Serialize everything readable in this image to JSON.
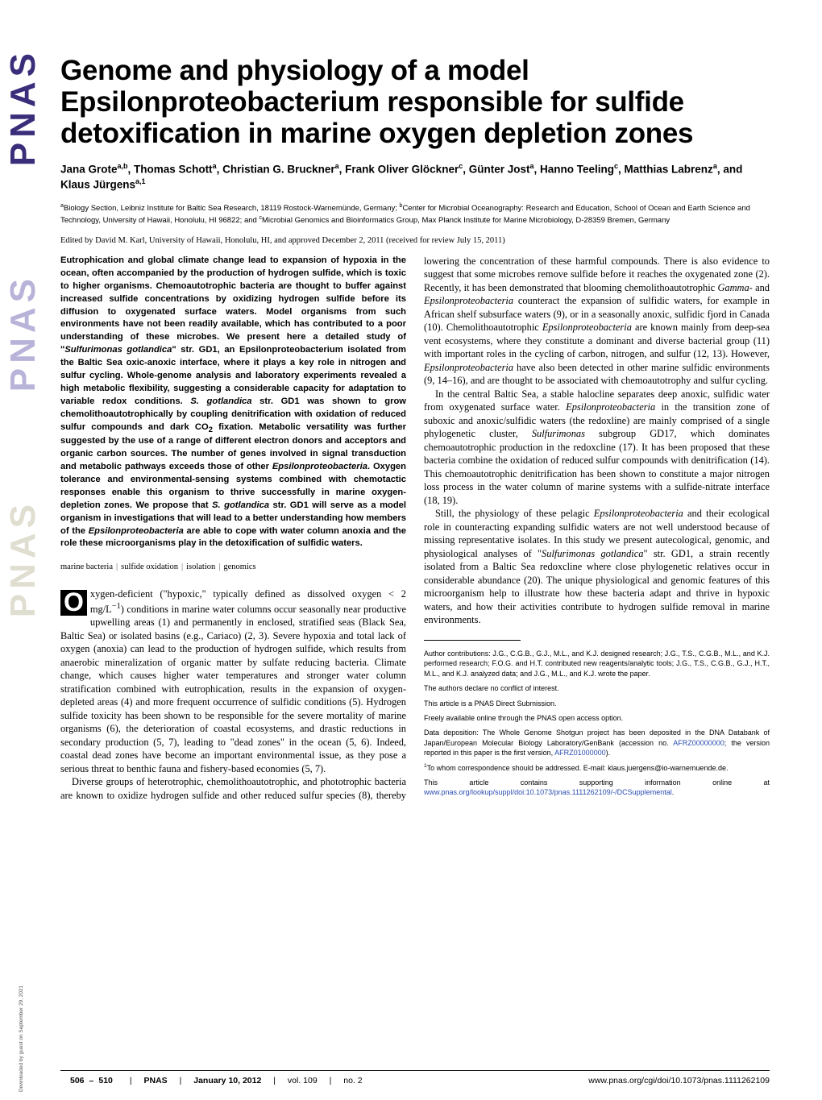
{
  "banner": {
    "text1": "PNAS",
    "text2": "PNAS",
    "text3": "PNAS",
    "download": "Downloaded by guest on September 29, 2021"
  },
  "title": "Genome and physiology of a model Epsilonproteobacterium responsible for sulfide detoxification in marine oxygen depletion zones",
  "authors_html": "Jana Grote<sup>a,b</sup>, Thomas Schott<sup>a</sup>, Christian G. Bruckner<sup>a</sup>, Frank Oliver Glöckner<sup>c</sup>, Günter Jost<sup>a</sup>, Hanno Teeling<sup>c</sup>, Matthias Labrenz<sup>a</sup>, and Klaus Jürgens<sup>a,1</sup>",
  "affiliations_html": "<sup>a</sup>Biology Section, Leibniz Institute for Baltic Sea Research, 18119 Rostock-Warnemünde, Germany; <sup>b</sup>Center for Microbial Oceanography: Research and Education, School of Ocean and Earth Science and Technology, University of Hawaii, Honolulu, HI 96822; and <sup>c</sup>Microbial Genomics and Bioinformatics Group, Max Planck Institute for Marine Microbiology, D-28359 Bremen, Germany",
  "edited": "Edited by David M. Karl, University of Hawaii, Honolulu, HI, and approved December 2, 2011 (received for review July 15, 2011)",
  "abstract_html": "Eutrophication and global climate change lead to expansion of hypoxia in the ocean, often accompanied by the production of hydrogen sulfide, which is toxic to higher organisms. Chemoautotrophic bacteria are thought to buffer against increased sulfide concentrations by oxidizing hydrogen sulfide before its diffusion to oxygenated surface waters. Model organisms from such environments have not been readily available, which has contributed to a poor understanding of these microbes. We present here a detailed study of \"<span class='ital'>Sulfurimonas gotlandica</span>\" str. GD1, an Epsilonproteobacterium isolated from the Baltic Sea oxic-anoxic interface, where it plays a key role in nitrogen and sulfur cycling. Whole-genome analysis and laboratory experiments revealed a high metabolic flexibility, suggesting a considerable capacity for adaptation to variable redox conditions. <span class='ital'>S. gotlandica</span> str. GD1 was shown to grow chemolithoautotrophically by coupling denitrification with oxidation of reduced sulfur compounds and dark CO<sub>2</sub> fixation. Metabolic versatility was further suggested by the use of a range of different electron donors and acceptors and organic carbon sources. The number of genes involved in signal transduction and metabolic pathways exceeds those of other <span class='ital'>Epsilonproteobacteria</span>. Oxygen tolerance and environmental-sensing systems combined with chemotactic responses enable this organism to thrive successfully in marine oxygen-depletion zones. We propose that <span class='ital'>S. gotlandica</span> str. GD1 will serve as a model organism in investigations that will lead to a better understanding how members of the <span class='ital'>Epsilonproteobacteria</span> are able to cope with water column anoxia and the role these microorganisms play in the detoxification of sulfidic waters.",
  "keywords": [
    "marine bacteria",
    "sulfide oxidation",
    "isolation",
    "genomics"
  ],
  "body": {
    "p1_html": "xygen-deficient (\"hypoxic,\" typically defined as dissolved oxygen &lt; 2 mg/L<sup>−1</sup>) conditions in marine water columns occur seasonally near productive upwelling areas (1) and permanently in enclosed, stratified seas (Black Sea, Baltic Sea) or isolated basins (e.g., Cariaco) (2, 3). Severe hypoxia and total lack of oxygen (anoxia) can lead to the production of hydrogen sulfide, which results from anaerobic mineralization of organic matter by sulfate reducing bacteria. Climate change, which causes higher water temperatures and stronger water column stratification combined with eutrophication, results in the expansion of oxygen-depleted areas (4) and more frequent occurrence of sulfidic conditions (5). Hydrogen sulfide toxicity has been shown to be responsible for the severe mortality of marine organisms (6), the deterioration of coastal ecosystems, and drastic reductions in secondary production (5, 7), leading to \"dead zones\" in the ocean (5, 6). Indeed, coastal dead zones have become an important environmental issue, as they pose a serious threat to benthic fauna and fishery-based economies (5, 7).",
    "p2_html": "Diverse groups of heterotrophic, chemolithoautotrophic, and phototrophic bacteria are known to oxidize hydrogen sulfide and other reduced sulfur species (8), thereby lowering the concentration of these harmful compounds. There is also evidence to suggest that some microbes remove sulfide before it reaches the oxygenated zone (2). Recently, it has been demonstrated that blooming chemolithoautotrophic <span class='ital'>Gamma-</span> and <span class='ital'>Epsilonproteobacteria</span> counteract the expansion of sulfidic waters, for example in African shelf subsurface waters (9), or in a seasonally anoxic, sulfidic fjord in Canada (10). Chemolithoautotrophic <span class='ital'>Epsilonproteobacteria</span> are known mainly from deep-sea vent ecosystems, where they constitute a dominant and diverse bacterial group (11) with important roles in the cycling of carbon, nitrogen, and sulfur (12, 13). However, <span class='ital'>Epsilonproteobacteria</span> have also been detected in other marine sulfidic environments (9, 14–16), and are thought to be associated with chemoautotrophy and sulfur cycling.",
    "p3_html": "In the central Baltic Sea, a stable halocline separates deep anoxic, sulfidic water from oxygenated surface water. <span class='ital'>Epsilonproteobacteria</span> in the transition zone of suboxic and anoxic/sulfidic waters (the redoxline) are mainly comprised of a single phylogenetic cluster, <span class='ital'>Sulfurimonas</span> subgroup GD17, which dominates chemoautotrophic production in the redoxcline (17). It has been proposed that these bacteria combine the oxidation of reduced sulfur compounds with denitrification (14). This chemoautotrophic denitrification has been shown to constitute a major nitrogen loss process in the water column of marine systems with a sulfide-nitrate interface (18, 19).",
    "p4_html": "Still, the physiology of these pelagic <span class='ital'>Epsilonproteobacteria</span> and their ecological role in counteracting expanding sulfidic waters are not well understood because of missing representative isolates. In this study we present autecological, genomic, and physiological analyses of \"<span class='ital'>Sulfurimonas gotlandica</span>\" str. GD1, a strain recently isolated from a Baltic Sea redoxcline where close phylogenetic relatives occur in considerable abundance (20). The unique physiological and genomic features of this microorganism help to illustrate how these bacteria adapt and thrive in hypoxic waters, and how their activities contribute to hydrogen sulfide removal in marine environments."
  },
  "footnotes": {
    "contribs": "Author contributions: J.G., C.G.B., G.J., M.L., and K.J. designed research; J.G., T.S., C.G.B., M.L., and K.J. performed research; F.O.G. and H.T. contributed new reagents/analytic tools; J.G., T.S., C.G.B., G.J., H.T., M.L., and K.J. analyzed data; and J.G., M.L., and K.J. wrote the paper.",
    "conflict": "The authors declare no conflict of interest.",
    "direct": "This article is a PNAS Direct Submission.",
    "open": "Freely available online through the PNAS open access option.",
    "deposition_html": "Data deposition: The Whole Genome Shotgun project has been deposited in the DNA Databank of Japan/European Molecular Biology Laboratory/GenBank (accession no. <a href='#'>AFRZ00000000</a>; the version reported in this paper is the first version, <a href='#'>AFRZ01000000</a>).",
    "corresp_html": "<sup>1</sup>To whom correspondence should be addressed. E-mail: klaus.juergens@io-warnemuende.de.",
    "suppl_html": "This article contains supporting information online at <a href='#'>www.pnas.org/lookup/suppl/doi:10.1073/pnas.1111262109/-/DCSupplemental</a>."
  },
  "footer": {
    "page_start": "506",
    "page_end": "510",
    "journal": "PNAS",
    "date": "January 10, 2012",
    "vol": "vol. 109",
    "no": "no. 2",
    "doi": "www.pnas.org/cgi/doi/10.1073/pnas.1111262109"
  },
  "colors": {
    "pnas_dark": "#3a2e7a",
    "pnas_mid": "#b8b3d8",
    "pnas_light": "#e0ded0",
    "link": "#2a4db0",
    "text": "#000000",
    "background": "#ffffff"
  },
  "typography": {
    "title_size_pt": 26,
    "body_size_pt": 9.3,
    "abstract_size_pt": 8.4,
    "footnote_size_pt": 6.8,
    "footer_size_pt": 7.9
  }
}
